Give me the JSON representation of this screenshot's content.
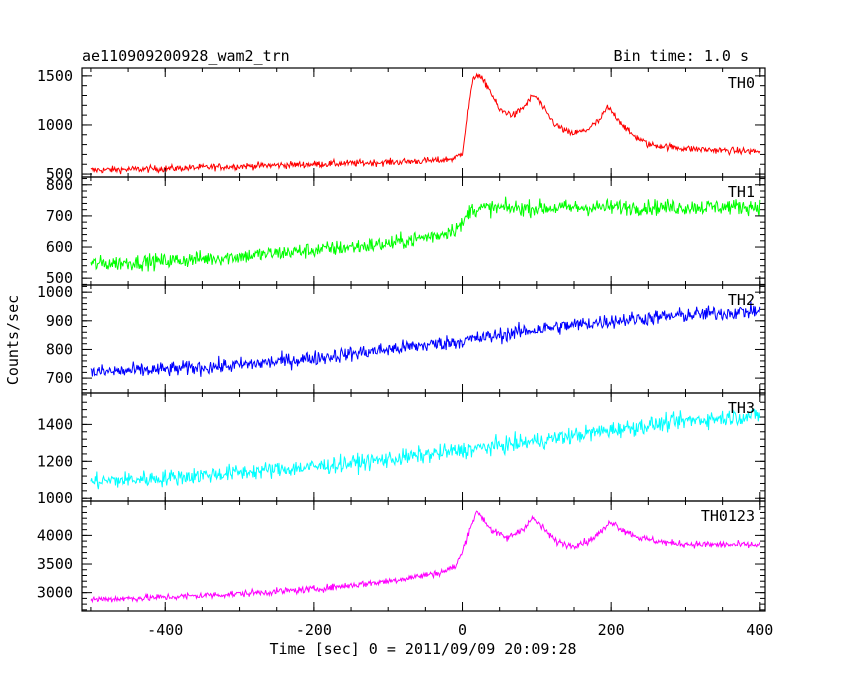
{
  "chart_data": {
    "type": "line",
    "title": "ae110909200928_wam2_trn",
    "bin_time_label": "Bin time: 1.0 s",
    "xlabel": "Time [sec] 0 = 2011/09/09 20:09:28",
    "ylabel": "Counts/sec",
    "xlim": [
      -512,
      407
    ],
    "x_ticks": [
      -400,
      -200,
      0,
      200,
      400
    ],
    "grid": false,
    "panels": [
      {
        "name": "TH0",
        "color": "#ff0000",
        "ylim": [
          470,
          1580
        ],
        "y_ticks": [
          500,
          1000,
          1500
        ],
        "noise": 35,
        "series": {
          "x": [
            -500,
            -400,
            -300,
            -200,
            -100,
            -30,
            -10,
            0,
            5,
            10,
            15,
            20,
            35,
            50,
            70,
            85,
            95,
            100,
            110,
            125,
            145,
            165,
            185,
            195,
            205,
            225,
            250,
            300,
            350,
            400
          ],
          "values": [
            540,
            555,
            580,
            600,
            620,
            640,
            660,
            720,
            1000,
            1300,
            1480,
            1520,
            1380,
            1150,
            1100,
            1200,
            1300,
            1280,
            1150,
            1000,
            910,
            940,
            1050,
            1180,
            1100,
            920,
            800,
            760,
            740,
            730
          ]
        }
      },
      {
        "name": "TH1",
        "color": "#00ff00",
        "ylim": [
          478,
          825
        ],
        "y_ticks": [
          500,
          600,
          700,
          800
        ],
        "noise": 25,
        "series": {
          "x": [
            -500,
            -400,
            -300,
            -200,
            -100,
            -30,
            0,
            10,
            30,
            100,
            200,
            300,
            400
          ],
          "values": [
            545,
            555,
            570,
            590,
            610,
            640,
            670,
            720,
            725,
            725,
            728,
            728,
            730
          ]
        }
      },
      {
        "name": "TH2",
        "color": "#0000ff",
        "ylim": [
          648,
          1025
        ],
        "y_ticks": [
          700,
          800,
          900,
          1000
        ],
        "noise": 26,
        "series": {
          "x": [
            -500,
            -400,
            -300,
            -200,
            -100,
            0,
            100,
            200,
            300,
            400
          ],
          "values": [
            720,
            730,
            745,
            770,
            800,
            830,
            870,
            900,
            920,
            935
          ]
        }
      },
      {
        "name": "TH3",
        "color": "#00ffff",
        "ylim": [
          985,
          1570
        ],
        "y_ticks": [
          1000,
          1200,
          1400
        ],
        "noise": 45,
        "series": {
          "x": [
            -500,
            -400,
            -300,
            -200,
            -100,
            0,
            100,
            200,
            300,
            400
          ],
          "values": [
            1090,
            1110,
            1140,
            1170,
            1210,
            1260,
            1310,
            1370,
            1420,
            1450
          ]
        }
      },
      {
        "name": "TH0123",
        "color": "#ff00ff",
        "ylim": [
          2680,
          4600
        ],
        "y_ticks": [
          3000,
          3500,
          4000
        ],
        "noise": 60,
        "series": {
          "x": [
            -500,
            -400,
            -300,
            -200,
            -100,
            -30,
            -10,
            0,
            10,
            20,
            40,
            60,
            80,
            95,
            110,
            125,
            145,
            170,
            190,
            200,
            215,
            240,
            280,
            320,
            400
          ],
          "values": [
            2880,
            2920,
            2980,
            3060,
            3200,
            3350,
            3450,
            3700,
            4150,
            4420,
            4080,
            3950,
            4100,
            4300,
            4100,
            3900,
            3820,
            3900,
            4100,
            4250,
            4100,
            3950,
            3860,
            3840,
            3830
          ]
        }
      }
    ]
  }
}
